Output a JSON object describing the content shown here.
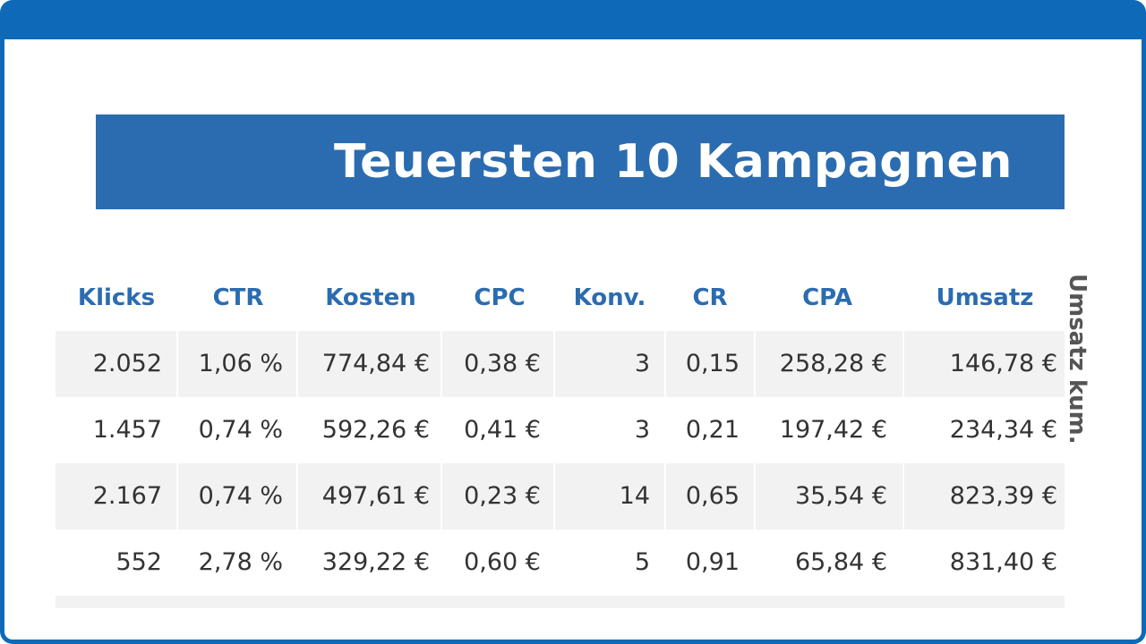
{
  "title": "Teuersten 10 Kampagnen",
  "columns": [
    "Klicks",
    "CTR",
    "Kosten",
    "CPC",
    "Konv.",
    "CR",
    "CPA",
    "Umsatz"
  ],
  "cut_column": "Umsatz kum.",
  "rows": [
    [
      "2.052",
      "1,06 %",
      "774,84 €",
      "0,38 €",
      "3",
      "0,15",
      "258,28 €",
      "146,78 €"
    ],
    [
      "1.457",
      "0,74 %",
      "592,26 €",
      "0,41 €",
      "3",
      "0,21",
      "197,42 €",
      "234,34 €"
    ],
    [
      "2.167",
      "0,74 %",
      "497,61 €",
      "0,23 €",
      "14",
      "0,65",
      "35,54 €",
      "823,39 €"
    ],
    [
      "552",
      "2,78 %",
      "329,22 €",
      "0,60 €",
      "5",
      "0,91",
      "65,84 €",
      "831,40 €"
    ]
  ],
  "colors": {
    "frame": "#0e6ab8",
    "banner": "#2b6cb0",
    "header_text": "#2b6cb0",
    "row_shade": "#f2f2f2",
    "cell_text": "#333333"
  }
}
